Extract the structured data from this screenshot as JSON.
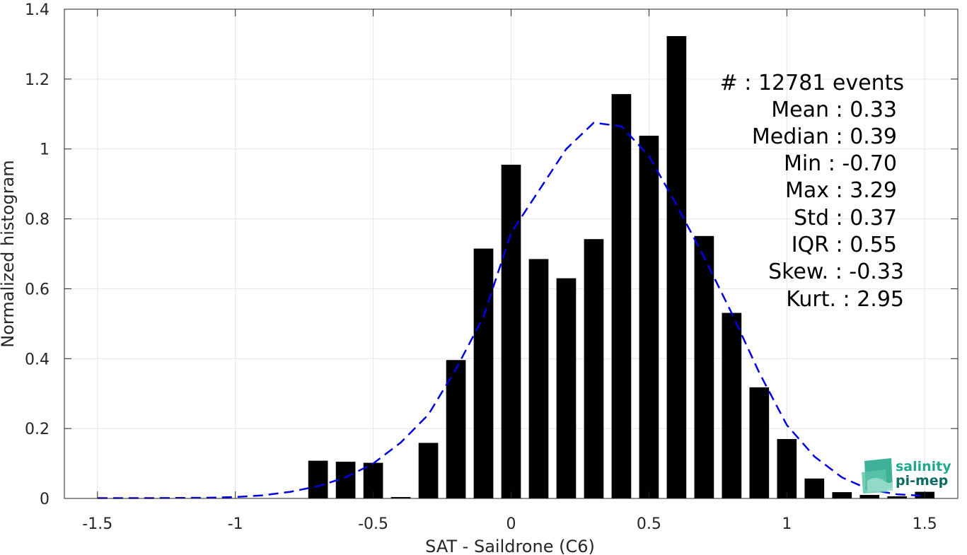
{
  "chart_data": {
    "type": "bar",
    "xlabel": "SAT - Saildrone (C6)",
    "ylabel": "Normalized histogram",
    "xlim": [
      -1.62,
      1.62
    ],
    "ylim": [
      0,
      1.4
    ],
    "grid": true,
    "x_ticks": [
      -1.5,
      -1,
      -0.5,
      0,
      0.5,
      1,
      1.5
    ],
    "x_tick_labels": [
      "-1.5",
      "-1",
      "-0.5",
      "0",
      "0.5",
      "1",
      "1.5"
    ],
    "y_ticks": [
      0,
      0.2,
      0.4,
      0.6,
      0.8,
      1,
      1.2,
      1.4
    ],
    "y_tick_labels": [
      "0",
      "0.2",
      "0.4",
      "0.6",
      "0.8",
      "1",
      "1.2",
      "1.4"
    ],
    "bin_width": 0.1,
    "bars": [
      {
        "x": -0.7,
        "y": 0.108
      },
      {
        "x": -0.6,
        "y": 0.105
      },
      {
        "x": -0.5,
        "y": 0.102
      },
      {
        "x": -0.4,
        "y": 0.004
      },
      {
        "x": -0.3,
        "y": 0.159
      },
      {
        "x": -0.2,
        "y": 0.396
      },
      {
        "x": -0.1,
        "y": 0.715
      },
      {
        "x": 0.0,
        "y": 0.955
      },
      {
        "x": 0.1,
        "y": 0.685
      },
      {
        "x": 0.2,
        "y": 0.63
      },
      {
        "x": 0.3,
        "y": 0.742
      },
      {
        "x": 0.4,
        "y": 1.157
      },
      {
        "x": 0.5,
        "y": 1.038
      },
      {
        "x": 0.6,
        "y": 1.323
      },
      {
        "x": 0.7,
        "y": 0.751
      },
      {
        "x": 0.8,
        "y": 0.531
      },
      {
        "x": 0.9,
        "y": 0.318
      },
      {
        "x": 1.0,
        "y": 0.17
      },
      {
        "x": 1.1,
        "y": 0.057
      },
      {
        "x": 1.2,
        "y": 0.018
      },
      {
        "x": 1.3,
        "y": 0.01
      },
      {
        "x": 1.4,
        "y": 0.006
      },
      {
        "x": 1.5,
        "y": 0.019
      }
    ],
    "fit_curve": {
      "style": "dashed",
      "color": "#0000e6",
      "points": [
        [
          -1.5,
          0.001
        ],
        [
          -1.3,
          0.001
        ],
        [
          -1.1,
          0.002
        ],
        [
          -1.0,
          0.004
        ],
        [
          -0.9,
          0.009
        ],
        [
          -0.8,
          0.019
        ],
        [
          -0.7,
          0.035
        ],
        [
          -0.6,
          0.06
        ],
        [
          -0.5,
          0.1
        ],
        [
          -0.4,
          0.16
        ],
        [
          -0.3,
          0.24
        ],
        [
          -0.2,
          0.37
        ],
        [
          -0.1,
          0.52
        ],
        [
          0.0,
          0.76
        ],
        [
          0.1,
          0.88
        ],
        [
          0.2,
          1.0
        ],
        [
          0.3,
          1.075
        ],
        [
          0.4,
          1.065
        ],
        [
          0.5,
          0.98
        ],
        [
          0.6,
          0.84
        ],
        [
          0.7,
          0.69
        ],
        [
          0.8,
          0.53
        ],
        [
          0.9,
          0.36
        ],
        [
          1.0,
          0.21
        ],
        [
          1.1,
          0.12
        ],
        [
          1.2,
          0.06
        ],
        [
          1.3,
          0.025
        ],
        [
          1.4,
          0.012
        ],
        [
          1.5,
          0.007
        ]
      ]
    },
    "bar_color": "#000000"
  },
  "stats": [
    "#  : 12781 events",
    "Mean : 0.33",
    "Median : 0.39",
    "Min : -0.70",
    "Max : 3.29",
    "Std : 0.37",
    "IQR : 0.55",
    "Skew. : -0.33",
    "Kurt. : 2.95"
  ],
  "logo": {
    "line1": "salinity",
    "line2": "pi-mep",
    "color_line1": "#1fa88e",
    "color_line2": "#0d6b64"
  }
}
